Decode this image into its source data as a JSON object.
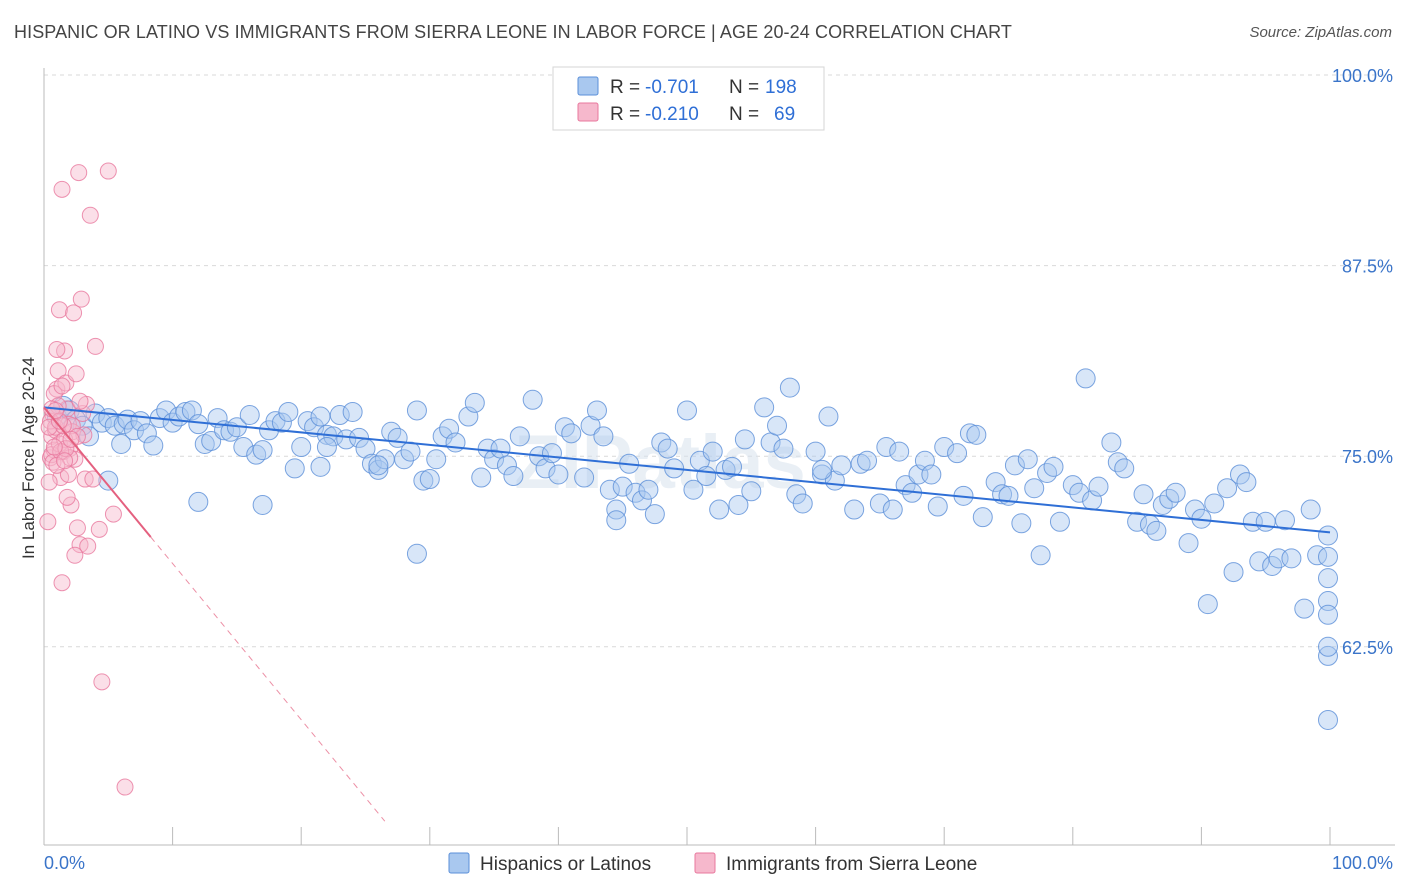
{
  "title": "HISPANIC OR LATINO VS IMMIGRANTS FROM SIERRA LEONE IN LABOR FORCE | AGE 20-24 CORRELATION CHART",
  "source": "Source: ZipAtlas.com",
  "watermark": "ZIPatlas",
  "colors": {
    "blue": "#5b8fd8",
    "blue_fill": "#a9c8ef",
    "blue_line": "#2f6fd6",
    "pink": "#e8789e",
    "pink_fill": "#f6b8cc",
    "pink_line": "#e4607f",
    "tick_text": "#3a74c9",
    "grid": "#d9d9d9"
  },
  "legend": {
    "rows": [
      {
        "r_label": "R = ",
        "r_value": "-0.701",
        "n_label": "N = ",
        "n_value": "198",
        "series": "blue"
      },
      {
        "r_label": "R = ",
        "r_value": "-0.210",
        "n_label": "N = ",
        "n_value": "69",
        "series": "pink"
      }
    ]
  },
  "bottom_legend": [
    {
      "label": "Hispanics or Latinos",
      "series": "blue"
    },
    {
      "label": "Immigrants from Sierra Leone",
      "series": "pink"
    }
  ],
  "chart_data": {
    "type": "scatter",
    "title": "HISPANIC OR LATINO VS IMMIGRANTS FROM SIERRA LEONE IN LABOR FORCE | AGE 20-24 CORRELATION CHART",
    "xlabel": "",
    "ylabel": "In Labor Force | Age 20-24",
    "xlim": [
      0,
      100
    ],
    "ylim": [
      49.5,
      100
    ],
    "x_tick_labels": [
      "0.0%",
      "100.0%"
    ],
    "y_ticks": [
      62.5,
      75.0,
      87.5,
      100.0
    ],
    "y_tick_labels": [
      "62.5%",
      "75.0%",
      "87.5%",
      "100.0%"
    ],
    "series": [
      {
        "name": "Hispanics or Latinos",
        "color": "blue",
        "trend": {
          "x": [
            0,
            100
          ],
          "y": [
            78.2,
            70.0
          ],
          "dashed_x": null
        },
        "points": [
          [
            1,
            77.6
          ],
          [
            1.5,
            78.3
          ],
          [
            2,
            78
          ],
          [
            2.5,
            77.4
          ],
          [
            3,
            77
          ],
          [
            3.5,
            76.3
          ],
          [
            4,
            77.8
          ],
          [
            4.5,
            77.2
          ],
          [
            5,
            77.5
          ],
          [
            5.5,
            77
          ],
          [
            6,
            75.8
          ],
          [
            6.2,
            77.1
          ],
          [
            6.5,
            77.4
          ],
          [
            7,
            76.7
          ],
          [
            7.5,
            77.3
          ],
          [
            8,
            76.5
          ],
          [
            8.5,
            75.7
          ],
          [
            9,
            77.5
          ],
          [
            9.5,
            78
          ],
          [
            10,
            77.2
          ],
          [
            10.5,
            77.6
          ],
          [
            11,
            77.9
          ],
          [
            11.5,
            78
          ],
          [
            12,
            77.1
          ],
          [
            12.5,
            75.8
          ],
          [
            13,
            76
          ],
          [
            13.5,
            77.5
          ],
          [
            14,
            76.7
          ],
          [
            14.5,
            76.6
          ],
          [
            15,
            76.9
          ],
          [
            15.5,
            75.6
          ],
          [
            16,
            77.7
          ],
          [
            16.5,
            75.1
          ],
          [
            17,
            75.4
          ],
          [
            17.5,
            76.7
          ],
          [
            18,
            77.3
          ],
          [
            18.5,
            77.2
          ],
          [
            19,
            77.9
          ],
          [
            19.5,
            74.2
          ],
          [
            20,
            75.6
          ],
          [
            20.5,
            77.3
          ],
          [
            21,
            76.9
          ],
          [
            21.5,
            77.6
          ],
          [
            22,
            76.4
          ],
          [
            22.5,
            76.3
          ],
          [
            23,
            77.7
          ],
          [
            23.5,
            76.1
          ],
          [
            24,
            77.9
          ],
          [
            24.5,
            76.2
          ],
          [
            25,
            75.5
          ],
          [
            25.5,
            74.5
          ],
          [
            26,
            74.1
          ],
          [
            26.5,
            74.8
          ],
          [
            27,
            76.6
          ],
          [
            27.5,
            76.2
          ],
          [
            28,
            74.8
          ],
          [
            29,
            78
          ],
          [
            29.5,
            73.4
          ],
          [
            30,
            73.5
          ],
          [
            30.5,
            74.8
          ],
          [
            31,
            76.3
          ],
          [
            31.5,
            76.8
          ],
          [
            32,
            75.9
          ],
          [
            33,
            77.6
          ],
          [
            33.5,
            78.5
          ],
          [
            34,
            73.6
          ],
          [
            34.5,
            75.5
          ],
          [
            35,
            74.8
          ],
          [
            35.5,
            75.5
          ],
          [
            36,
            74.4
          ],
          [
            36.5,
            73.7
          ],
          [
            37,
            76.3
          ],
          [
            38,
            78.7
          ],
          [
            38.5,
            75
          ],
          [
            39,
            74.2
          ],
          [
            39.5,
            75.2
          ],
          [
            40,
            73.8
          ],
          [
            40.5,
            76.9
          ],
          [
            41,
            76.5
          ],
          [
            42,
            73.6
          ],
          [
            42.5,
            77
          ],
          [
            43,
            78
          ],
          [
            43.5,
            76.3
          ],
          [
            44,
            72.8
          ],
          [
            44.5,
            71.5
          ],
          [
            45,
            73
          ],
          [
            45.5,
            74.5
          ],
          [
            46,
            72.6
          ],
          [
            46.5,
            72.1
          ],
          [
            47,
            72.8
          ],
          [
            47.5,
            71.2
          ],
          [
            48,
            75.9
          ],
          [
            48.5,
            75.5
          ],
          [
            49,
            74.2
          ],
          [
            50,
            78
          ],
          [
            50.5,
            72.8
          ],
          [
            51,
            74.7
          ],
          [
            51.5,
            73.7
          ],
          [
            52,
            75.3
          ],
          [
            52.5,
            71.5
          ],
          [
            53,
            74.1
          ],
          [
            53.5,
            74.3
          ],
          [
            54,
            71.8
          ],
          [
            54.5,
            76.1
          ],
          [
            55,
            72.7
          ],
          [
            56,
            78.2
          ],
          [
            56.5,
            75.9
          ],
          [
            57,
            77
          ],
          [
            57.5,
            75.5
          ],
          [
            58,
            79.5
          ],
          [
            58.5,
            72.5
          ],
          [
            59,
            71.9
          ],
          [
            60,
            75.3
          ],
          [
            60.5,
            73.8
          ],
          [
            61,
            77.6
          ],
          [
            61.5,
            73.4
          ],
          [
            62,
            74.4
          ],
          [
            63,
            71.5
          ],
          [
            63.5,
            74.5
          ],
          [
            64,
            74.7
          ],
          [
            65,
            71.9
          ],
          [
            65.5,
            75.6
          ],
          [
            66,
            71.5
          ],
          [
            66.5,
            75.3
          ],
          [
            67,
            73.1
          ],
          [
            67.5,
            72.6
          ],
          [
            68,
            73.8
          ],
          [
            68.5,
            74.7
          ],
          [
            69,
            73.8
          ],
          [
            69.5,
            71.7
          ],
          [
            70,
            75.6
          ],
          [
            71,
            75.2
          ],
          [
            71.5,
            72.4
          ],
          [
            72,
            76.5
          ],
          [
            72.5,
            76.4
          ],
          [
            73,
            71
          ],
          [
            74,
            73.3
          ],
          [
            74.5,
            72.5
          ],
          [
            75,
            72.4
          ],
          [
            75.5,
            74.4
          ],
          [
            76,
            70.6
          ],
          [
            76.5,
            74.8
          ],
          [
            77,
            72.9
          ],
          [
            77.5,
            68.5
          ],
          [
            78,
            73.9
          ],
          [
            78.5,
            74.3
          ],
          [
            79,
            70.7
          ],
          [
            80,
            73.1
          ],
          [
            80.5,
            72.6
          ],
          [
            81,
            80.1
          ],
          [
            81.5,
            72.1
          ],
          [
            82,
            73
          ],
          [
            83,
            75.9
          ],
          [
            83.5,
            74.6
          ],
          [
            84,
            74.2
          ],
          [
            85,
            70.7
          ],
          [
            85.5,
            72.5
          ],
          [
            86,
            70.5
          ],
          [
            86.5,
            70.1
          ],
          [
            87,
            71.8
          ],
          [
            87.5,
            72.2
          ],
          [
            88,
            72.6
          ],
          [
            89,
            69.3
          ],
          [
            89.5,
            71.5
          ],
          [
            90,
            70.9
          ],
          [
            90.5,
            65.3
          ],
          [
            91,
            71.9
          ],
          [
            92,
            72.9
          ],
          [
            92.5,
            67.4
          ],
          [
            93,
            73.8
          ],
          [
            93.5,
            73.3
          ],
          [
            94,
            70.7
          ],
          [
            94.5,
            68.1
          ],
          [
            95,
            70.7
          ],
          [
            95.5,
            67.8
          ],
          [
            96,
            68.3
          ],
          [
            96.5,
            70.8
          ],
          [
            97,
            68.3
          ],
          [
            98,
            65
          ],
          [
            98.5,
            71.5
          ],
          [
            99,
            68.5
          ],
          [
            100,
            69.8
          ],
          [
            100.5,
            67
          ],
          [
            101,
            61.9
          ],
          [
            101.5,
            65.5
          ],
          [
            102,
            62.5
          ],
          [
            102.5,
            57.7
          ],
          [
            103,
            68.4
          ],
          [
            104,
            64.6
          ],
          [
            26,
            74.4
          ],
          [
            28.5,
            75.3
          ],
          [
            12,
            72
          ],
          [
            22,
            75.6
          ],
          [
            44.5,
            70.8
          ],
          [
            5,
            73.4
          ],
          [
            17,
            71.8
          ],
          [
            29,
            68.6
          ],
          [
            60.5,
            74.1
          ],
          [
            21.5,
            74.3
          ]
        ]
      },
      {
        "name": "Immigrants from Sierra Leone",
        "color": "pink",
        "trend": {
          "x": [
            0,
            8.3
          ],
          "y": [
            78.2,
            69.7
          ],
          "dashed_x": [
            8.3,
            26.5
          ]
        },
        "points": [
          [
            0.3,
            70.7
          ],
          [
            0.5,
            74.9
          ],
          [
            0.6,
            76.3
          ],
          [
            0.7,
            77.7
          ],
          [
            0.8,
            75.4
          ],
          [
            0.9,
            76.7
          ],
          [
            1,
            79.4
          ],
          [
            1.1,
            80.6
          ],
          [
            1.2,
            84.6
          ],
          [
            1.3,
            73.6
          ],
          [
            1.4,
            92.5
          ],
          [
            1.5,
            75.3
          ],
          [
            1.6,
            81.9
          ],
          [
            1.7,
            79.8
          ],
          [
            1.8,
            78.1
          ],
          [
            1.9,
            77.1
          ],
          [
            2,
            75.5
          ],
          [
            2.1,
            71.8
          ],
          [
            2.2,
            76.6
          ],
          [
            2.3,
            84.4
          ],
          [
            2.4,
            74.8
          ],
          [
            2.5,
            80.4
          ],
          [
            2.6,
            70.3
          ],
          [
            2.7,
            93.6
          ],
          [
            2.8,
            69.2
          ],
          [
            2.9,
            85.3
          ],
          [
            3,
            77.8
          ],
          [
            3.1,
            76.4
          ],
          [
            3.2,
            73.5
          ],
          [
            3.3,
            78.4
          ],
          [
            3.4,
            69.1
          ],
          [
            3.6,
            90.8
          ],
          [
            3.8,
            73.5
          ],
          [
            4,
            82.2
          ],
          [
            4.3,
            70.2
          ],
          [
            4.5,
            60.2
          ],
          [
            5,
            93.7
          ],
          [
            5.4,
            71.2
          ],
          [
            6.3,
            53.3
          ],
          [
            0.4,
            73.3
          ],
          [
            0.6,
            75.1
          ],
          [
            0.8,
            79.1
          ],
          [
            1,
            82
          ],
          [
            1.2,
            75.8
          ],
          [
            1.4,
            66.7
          ],
          [
            1.6,
            76.1
          ],
          [
            1.8,
            72.3
          ],
          [
            2,
            74.9
          ],
          [
            2.2,
            77
          ],
          [
            2.4,
            68.5
          ],
          [
            2.6,
            76.3
          ],
          [
            2.8,
            78.6
          ],
          [
            0.5,
            77.3
          ],
          [
            0.7,
            74.6
          ],
          [
            0.9,
            76.9
          ],
          [
            1.1,
            78.3
          ],
          [
            1.3,
            75.3
          ],
          [
            1.5,
            77
          ],
          [
            1.7,
            75.5
          ],
          [
            1.9,
            73.8
          ],
          [
            2.1,
            76.1
          ],
          [
            0.4,
            76.9
          ],
          [
            0.6,
            78.1
          ],
          [
            0.8,
            75.6
          ],
          [
            1,
            74.4
          ],
          [
            1.2,
            77.3
          ],
          [
            1.4,
            79.6
          ],
          [
            1.6,
            74.7
          ],
          [
            0.9,
            78
          ]
        ]
      }
    ]
  }
}
